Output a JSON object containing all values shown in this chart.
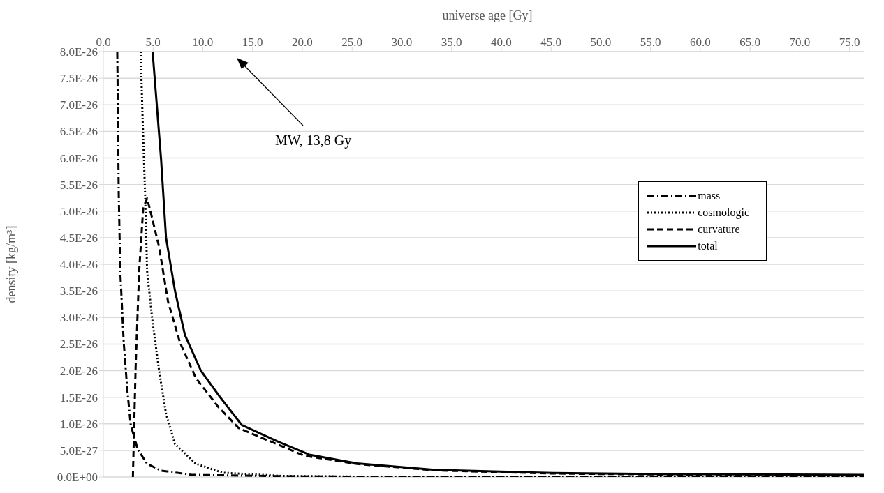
{
  "chart_data": {
    "type": "line",
    "xlabel": "universe age [Gy]",
    "ylabel": "density [kg/m³]",
    "xlim": [
      0,
      76.5
    ],
    "xticks": [
      {
        "value": 0,
        "label": "0.0"
      },
      {
        "value": 5,
        "label": "5.0"
      },
      {
        "value": 10,
        "label": "10.0"
      },
      {
        "value": 15,
        "label": "15.0"
      },
      {
        "value": 20,
        "label": "20.0"
      },
      {
        "value": 25,
        "label": "25.0"
      },
      {
        "value": 30,
        "label": "30.0"
      },
      {
        "value": 35,
        "label": "35.0"
      },
      {
        "value": 40,
        "label": "40.0"
      },
      {
        "value": 45,
        "label": "45.0"
      },
      {
        "value": 50,
        "label": "50.0"
      },
      {
        "value": 55,
        "label": "55.0"
      },
      {
        "value": 60,
        "label": "60.0"
      },
      {
        "value": 65,
        "label": "65.0"
      },
      {
        "value": 70,
        "label": "70.0"
      },
      {
        "value": 75,
        "label": "75.0"
      }
    ],
    "ylim": [
      0,
      8e-26
    ],
    "yticks": [
      {
        "value": 0,
        "label": "0.0E+00"
      },
      {
        "value": 5e-27,
        "label": "5.0E-27"
      },
      {
        "value": 1e-26,
        "label": "1.0E-26"
      },
      {
        "value": 1.5e-26,
        "label": "1.5E-26"
      },
      {
        "value": 2e-26,
        "label": "2.0E-26"
      },
      {
        "value": 2.5e-26,
        "label": "2.5E-26"
      },
      {
        "value": 3e-26,
        "label": "3.0E-26"
      },
      {
        "value": 3.5e-26,
        "label": "3.5E-26"
      },
      {
        "value": 4e-26,
        "label": "4.0E-26"
      },
      {
        "value": 4.5e-26,
        "label": "4.5E-26"
      },
      {
        "value": 5e-26,
        "label": "5.0E-26"
      },
      {
        "value": 5.5e-26,
        "label": "5.5E-26"
      },
      {
        "value": 6e-26,
        "label": "6.0E-26"
      },
      {
        "value": 6.5e-26,
        "label": "6.5E-26"
      },
      {
        "value": 7e-26,
        "label": "7.0E-26"
      },
      {
        "value": 7.5e-26,
        "label": "7.5E-26"
      },
      {
        "value": 8e-26,
        "label": "8.0E-26"
      }
    ],
    "grid": "y",
    "legend": "right",
    "marker": "none",
    "annotations": [
      "MW, 13,8 Gy"
    ],
    "series": [
      {
        "name": "mass",
        "color": "#000000",
        "line_style": "dashdot",
        "x": [
          1.4,
          1.55,
          1.7,
          2.05,
          2.4,
          2.75,
          3.45,
          4.4,
          5.8,
          8.9,
          20,
          40,
          76.5
        ],
        "values": [
          8e-26,
          5.3e-26,
          3.87e-26,
          2.53e-26,
          1.65e-26,
          9.8e-27,
          5.2e-27,
          2.5e-27,
          1.2e-27,
          4e-28,
          1e-28,
          0,
          0
        ]
      },
      {
        "name": "cosmologic",
        "color": "#000000",
        "line_style": "dotted",
        "x": [
          3.75,
          3.96,
          4.2,
          4.4,
          4.9,
          5.6,
          6.3,
          7.2,
          9.3,
          12,
          18,
          30,
          76.5
        ],
        "values": [
          8e-26,
          6.65e-26,
          5.3e-26,
          3.87e-26,
          2.99e-26,
          2e-26,
          1.19e-26,
          6.2e-27,
          2.5e-27,
          8e-28,
          2e-28,
          0,
          0
        ]
      },
      {
        "name": "curvature",
        "color": "#000000",
        "line_style": "dashed",
        "x": [
          2.97,
          3.25,
          3.6,
          4.0,
          4.4,
          4.9,
          5.6,
          6.5,
          7.7,
          9.3,
          11.5,
          13.6,
          20.2,
          25.5,
          33.3,
          45.2,
          57,
          76.5
        ],
        "values": [
          0,
          2.09e-26,
          3.87e-26,
          5.04e-26,
          5.24e-26,
          4.87e-26,
          4.33e-26,
          3.3e-26,
          2.53e-26,
          1.86e-26,
          1.33e-26,
          9.2e-27,
          4e-27,
          2.45e-27,
          1.25e-27,
          6.5e-28,
          4.5e-28,
          3.2e-28
        ]
      },
      {
        "name": "total",
        "color": "#000000",
        "line_style": "solid",
        "x": [
          4.95,
          5.8,
          6.3,
          7.2,
          8.2,
          9.8,
          11.7,
          13.9,
          17.6,
          20.7,
          25.5,
          33.3,
          45.2,
          57,
          76.5
        ],
        "values": [
          8e-26,
          5.98e-26,
          4.5e-26,
          3.5e-26,
          2.67e-26,
          2e-26,
          1.51e-26,
          9.8e-27,
          6.6e-27,
          4.2e-27,
          2.55e-27,
          1.34e-27,
          7.4e-28,
          5.4e-28,
          4e-28
        ]
      }
    ]
  }
}
